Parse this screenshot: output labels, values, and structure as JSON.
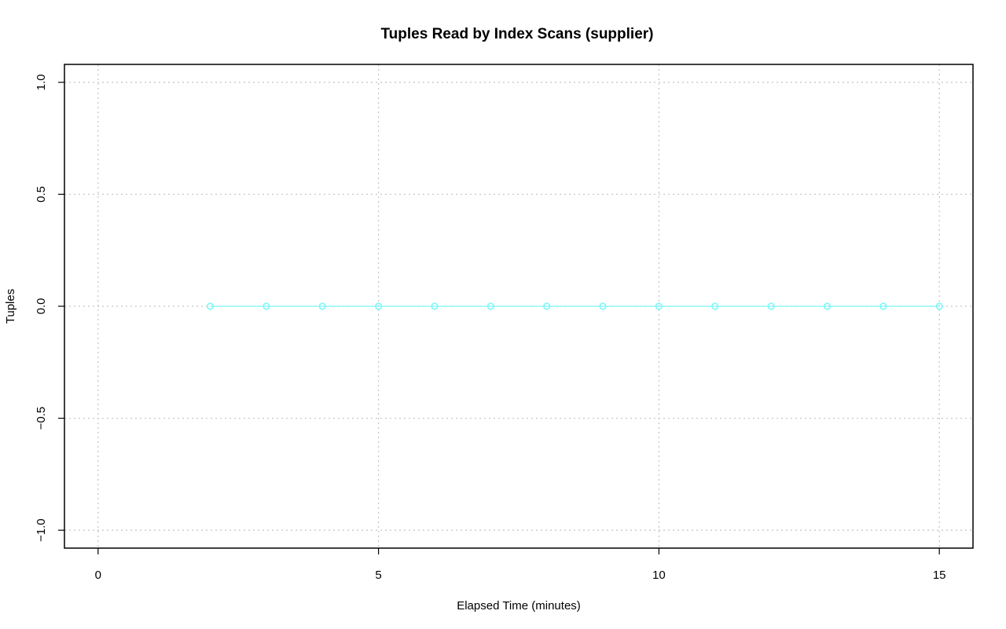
{
  "chart_data": {
    "type": "line",
    "title": "Tuples Read by Index Scans (supplier)",
    "xlabel": "Elapsed Time (minutes)",
    "ylabel": "Tuples",
    "xlim": [
      -0.6,
      15.6
    ],
    "ylim": [
      -1.08,
      1.08
    ],
    "xticks": [
      0,
      5,
      10,
      15
    ],
    "xtick_labels": [
      "0",
      "5",
      "10",
      "15"
    ],
    "yticks": [
      -1.0,
      -0.5,
      0.0,
      0.5,
      1.0
    ],
    "ytick_labels": [
      "−1.0",
      "−0.5",
      "0.0",
      "0.5",
      "1.0"
    ],
    "grid": true,
    "series": [
      {
        "color": "#7ff7f7",
        "marker": "open-circle",
        "x": [
          2,
          3,
          4,
          5,
          6,
          7,
          8,
          9,
          10,
          11,
          12,
          13,
          14,
          15
        ],
        "values": [
          0,
          0,
          0,
          0,
          0,
          0,
          0,
          0,
          0,
          0,
          0,
          0,
          0,
          0
        ]
      }
    ]
  }
}
